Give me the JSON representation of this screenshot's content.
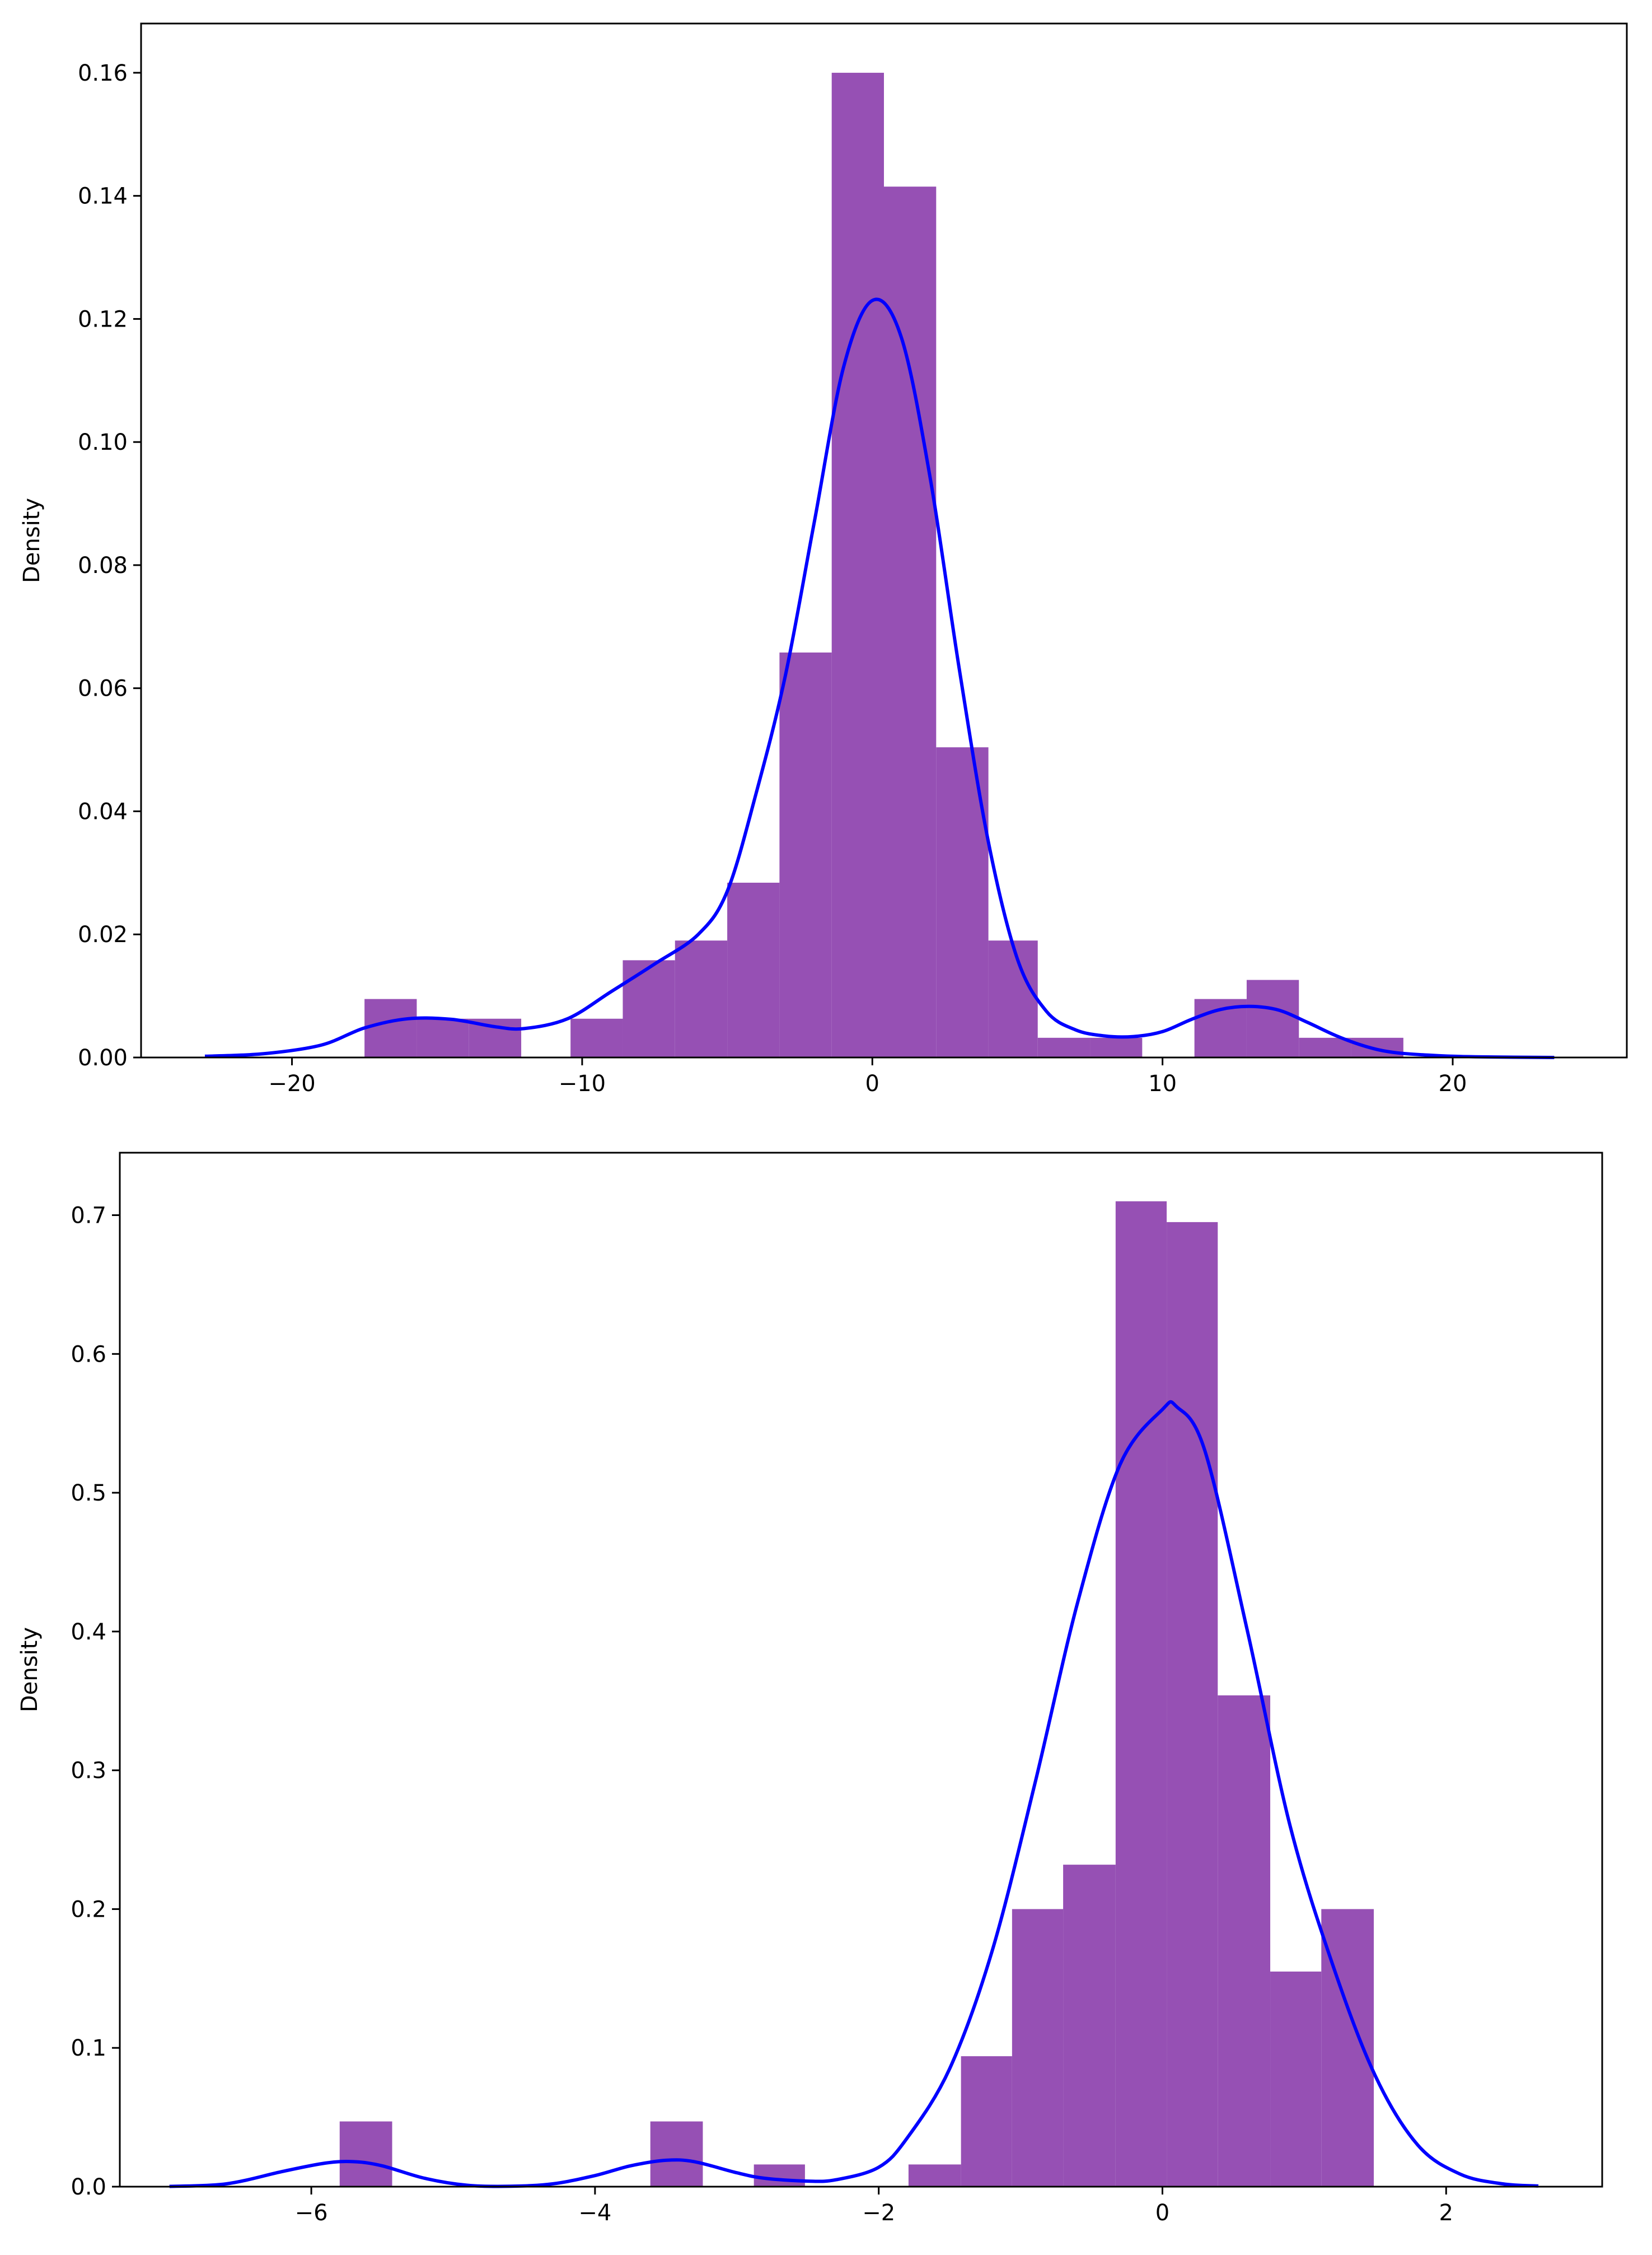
{
  "chart_data": [
    {
      "type": "histogram+kde",
      "title": "",
      "xlabel": "",
      "ylabel": "Density",
      "xlim": [
        -25.2,
        26.0
      ],
      "ylim": [
        0,
        0.168
      ],
      "xticks": [
        -20,
        -10,
        0,
        10,
        20
      ],
      "xtick_labels": [
        "−20",
        "−10",
        "0",
        "10",
        "20"
      ],
      "yticks": [
        0.0,
        0.02,
        0.04,
        0.06,
        0.08,
        0.1,
        0.12,
        0.14,
        0.16
      ],
      "ytick_labels": [
        "0.00",
        "0.02",
        "0.04",
        "0.06",
        "0.08",
        "0.10",
        "0.12",
        "0.14",
        "0.16"
      ],
      "hist_color": "#9650b4",
      "kde_color": "#0000ff",
      "bins": [
        {
          "x0": -17.5,
          "x1": -15.7,
          "density": 0.0095
        },
        {
          "x0": -15.7,
          "x1": -13.9,
          "density": 0.0063
        },
        {
          "x0": -13.9,
          "x1": -12.1,
          "density": 0.0063
        },
        {
          "x0": -10.4,
          "x1": -8.6,
          "density": 0.0063
        },
        {
          "x0": -8.6,
          "x1": -6.8,
          "density": 0.0158
        },
        {
          "x0": -6.8,
          "x1": -5.0,
          "density": 0.019
        },
        {
          "x0": -5.0,
          "x1": -3.2,
          "density": 0.0284
        },
        {
          "x0": -3.2,
          "x1": -1.4,
          "density": 0.0658
        },
        {
          "x0": -1.4,
          "x1": 0.4,
          "density": 0.16
        },
        {
          "x0": 0.4,
          "x1": 2.2,
          "density": 0.1415
        },
        {
          "x0": 2.2,
          "x1": 4.0,
          "density": 0.0504
        },
        {
          "x0": 4.0,
          "x1": 5.7,
          "density": 0.019
        },
        {
          "x0": 5.7,
          "x1": 7.5,
          "density": 0.0032
        },
        {
          "x0": 7.5,
          "x1": 9.3,
          "density": 0.0032
        },
        {
          "x0": 11.1,
          "x1": 12.9,
          "density": 0.0095
        },
        {
          "x0": 12.9,
          "x1": 14.7,
          "density": 0.0126
        },
        {
          "x0": 14.7,
          "x1": 16.5,
          "density": 0.0032
        },
        {
          "x0": 16.5,
          "x1": 18.3,
          "density": 0.0032
        }
      ],
      "kde": {
        "x": [
          -23.0,
          -21.0,
          -19.0,
          -17.5,
          -16.0,
          -14.5,
          -13.0,
          -12.0,
          -10.5,
          -9.0,
          -7.5,
          -6.0,
          -5.0,
          -4.0,
          -3.0,
          -2.0,
          -1.0,
          0.0,
          1.0,
          2.0,
          3.0,
          4.0,
          5.0,
          6.0,
          7.0,
          8.0,
          9.0,
          10.0,
          11.0,
          12.0,
          13.0,
          14.0,
          15.0,
          16.0,
          17.0,
          18.0,
          19.5,
          21.0,
          23.5
        ],
        "y": [
          0.0002,
          0.0006,
          0.002,
          0.0048,
          0.0063,
          0.0062,
          0.005,
          0.0047,
          0.0063,
          0.0107,
          0.0152,
          0.02,
          0.027,
          0.043,
          0.062,
          0.087,
          0.112,
          0.123,
          0.117,
          0.094,
          0.063,
          0.035,
          0.016,
          0.0075,
          0.0045,
          0.0035,
          0.0034,
          0.0042,
          0.0062,
          0.0078,
          0.0083,
          0.0077,
          0.0057,
          0.0035,
          0.0018,
          0.0008,
          0.0003,
          0.0001,
          0.0
        ]
      }
    },
    {
      "type": "histogram+kde",
      "title": "",
      "xlabel": "",
      "ylabel": "Density",
      "xlim": [
        -7.35,
        3.1
      ],
      "ylim": [
        0,
        0.745
      ],
      "xticks": [
        -6,
        -4,
        -2,
        0,
        2
      ],
      "xtick_labels": [
        "−6",
        "−4",
        "−2",
        "0",
        "2"
      ],
      "yticks": [
        0.0,
        0.1,
        0.2,
        0.3,
        0.4,
        0.5,
        0.6,
        0.7
      ],
      "ytick_labels": [
        "0.0",
        "0.1",
        "0.2",
        "0.3",
        "0.4",
        "0.5",
        "0.6",
        "0.7"
      ],
      "hist_color": "#9650b4",
      "kde_color": "#0000ff",
      "bins": [
        {
          "x0": -5.8,
          "x1": -5.43,
          "density": 0.047
        },
        {
          "x0": -3.61,
          "x1": -3.24,
          "density": 0.047
        },
        {
          "x0": -2.88,
          "x1": -2.52,
          "density": 0.016
        },
        {
          "x0": -1.79,
          "x1": -1.42,
          "density": 0.016
        },
        {
          "x0": -1.42,
          "x1": -1.06,
          "density": 0.094
        },
        {
          "x0": -1.06,
          "x1": -0.7,
          "density": 0.2
        },
        {
          "x0": -0.7,
          "x1": -0.33,
          "density": 0.232
        },
        {
          "x0": -0.33,
          "x1": 0.03,
          "density": 0.71
        },
        {
          "x0": 0.03,
          "x1": 0.39,
          "density": 0.695
        },
        {
          "x0": 0.39,
          "x1": 0.76,
          "density": 0.354
        },
        {
          "x0": 0.76,
          "x1": 1.12,
          "density": 0.155
        },
        {
          "x0": 1.12,
          "x1": 1.49,
          "density": 0.2
        }
      ],
      "kde": {
        "x": [
          -7.0,
          -6.6,
          -6.2,
          -5.9,
          -5.7,
          -5.5,
          -5.2,
          -4.9,
          -4.6,
          -4.3,
          -4.0,
          -3.75,
          -3.5,
          -3.3,
          -3.0,
          -2.8,
          -2.5,
          -2.3,
          -2.0,
          -1.8,
          -1.5,
          -1.2,
          -0.9,
          -0.6,
          -0.3,
          0.0,
          0.1,
          0.3,
          0.6,
          0.9,
          1.2,
          1.5,
          1.8,
          2.1,
          2.4,
          2.65
        ],
        "y": [
          0.0002,
          0.002,
          0.011,
          0.017,
          0.018,
          0.015,
          0.006,
          0.001,
          0.0003,
          0.002,
          0.008,
          0.015,
          0.019,
          0.018,
          0.01,
          0.006,
          0.004,
          0.005,
          0.014,
          0.035,
          0.085,
          0.17,
          0.29,
          0.42,
          0.52,
          0.56,
          0.562,
          0.53,
          0.4,
          0.26,
          0.16,
          0.08,
          0.03,
          0.009,
          0.002,
          0.0005
        ]
      }
    }
  ]
}
